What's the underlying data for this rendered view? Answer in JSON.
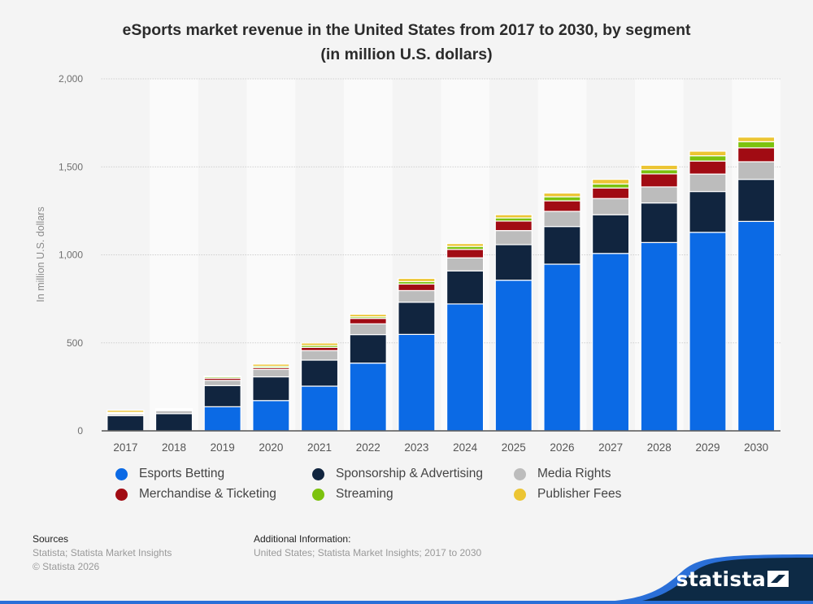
{
  "title_line1": "eSports market revenue in the United States from 2017 to 2030, by segment",
  "title_line2": "(in million U.S. dollars)",
  "chart_data": {
    "type": "bar",
    "stacked": true,
    "title": "eSports market revenue in the United States from 2017 to 2030, by segment (in million U.S. dollars)",
    "xlabel": "",
    "ylabel": "In million U.S. dollars",
    "ylim": [
      0,
      2000
    ],
    "yticks": [
      0,
      500,
      1000,
      1500,
      2000
    ],
    "ytick_labels": [
      "0",
      "500",
      "1,000",
      "1,500",
      "2,000"
    ],
    "grid": true,
    "legend_position": "bottom",
    "categories": [
      "2017",
      "2018",
      "2019",
      "2020",
      "2021",
      "2022",
      "2023",
      "2024",
      "2025",
      "2026",
      "2027",
      "2028",
      "2029",
      "2030"
    ],
    "series": [
      {
        "name": "Esports Betting",
        "color": "#0b6ae5",
        "values": [
          0,
          0,
          137,
          172,
          254,
          385,
          548,
          721,
          856,
          947,
          1008,
          1070,
          1128,
          1190
        ]
      },
      {
        "name": "Sponsorship & Advertising",
        "color": "#11253f",
        "values": [
          86,
          98,
          120,
          135,
          148,
          162,
          183,
          188,
          202,
          214,
          220,
          225,
          232,
          239
        ]
      },
      {
        "name": "Media Rights",
        "color": "#bcbcbc",
        "values": [
          10,
          17,
          30,
          42,
          54,
          61,
          66,
          74,
          80,
          86,
          92,
          91,
          99,
          100
        ]
      },
      {
        "name": "Merchandise & Ticketing",
        "color": "#a10b13",
        "values": [
          5,
          6,
          12,
          10,
          18,
          31,
          37,
          48,
          54,
          60,
          60,
          74,
          74,
          79
        ]
      },
      {
        "name": "Streaming",
        "color": "#7cc20e",
        "values": [
          4,
          2,
          8,
          8,
          11,
          9,
          14,
          17,
          18,
          23,
          23,
          24,
          30,
          35
        ]
      },
      {
        "name": "Publisher Fees",
        "color": "#ecc533",
        "values": [
          12,
          3,
          4,
          12,
          14,
          14,
          18,
          16,
          18,
          21,
          26,
          25,
          26,
          26
        ]
      }
    ]
  },
  "footer": {
    "sources_heading": "Sources",
    "sources_text": "Statista; Statista Market Insights",
    "copyright": "© Statista 2026",
    "additional_heading": "Additional Information:",
    "additional_text": "United States; Statista Market Insights; 2017 to 2030"
  },
  "brand": {
    "name": "statista",
    "logo_icon": "statista-logo-icon"
  }
}
